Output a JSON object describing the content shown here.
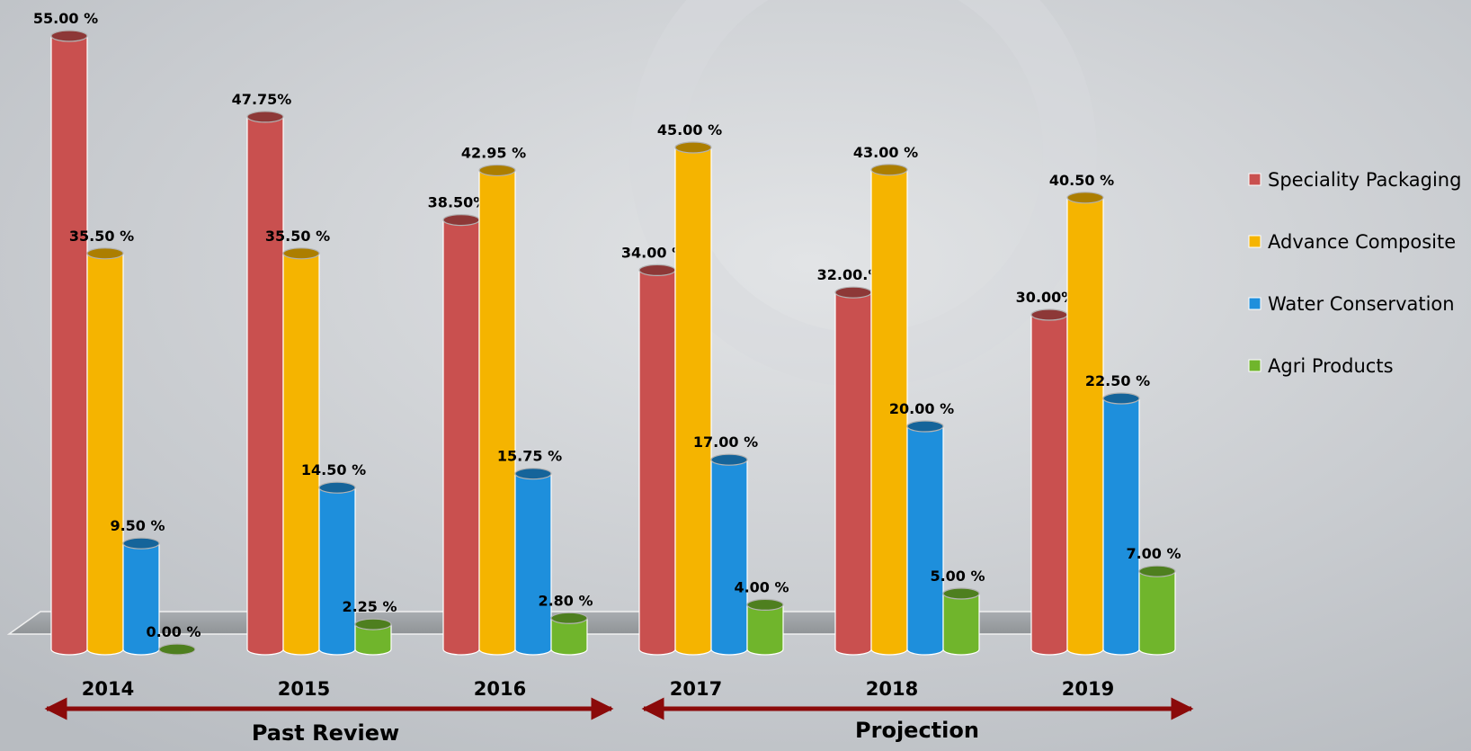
{
  "chart_data": {
    "type": "bar",
    "categories": [
      "2014",
      "2015",
      "2016",
      "2017",
      "2018",
      "2019"
    ],
    "series": [
      {
        "name": "Speciality Packaging",
        "color": "#c9504f",
        "values": [
          55,
          47.75,
          38.5,
          34,
          32,
          30
        ],
        "value_labels": [
          "55.00 %",
          "47.75%",
          "38.50%",
          "34.00 %",
          "32.00.%",
          "30.00%"
        ]
      },
      {
        "name": "Advance Composite",
        "color": "#f5b400",
        "values": [
          35.5,
          35.5,
          42.95,
          45,
          43,
          40.5
        ],
        "value_labels": [
          "35.50 %",
          "35.50 %",
          "42.95 %",
          "45.00 %",
          "43.00 %",
          "40.50 %"
        ]
      },
      {
        "name": "Water Conservation",
        "color": "#1e8fdc",
        "values": [
          9.5,
          14.5,
          15.75,
          17,
          20,
          22.5
        ],
        "value_labels": [
          "9.50 %",
          "14.50 %",
          "15.75 %",
          "17.00 %",
          "20.00 %",
          "22.50 %"
        ]
      },
      {
        "name": "Agri Products",
        "color": "#70b52c",
        "values": [
          0,
          2.25,
          2.8,
          4,
          5,
          7
        ],
        "value_labels": [
          "0.00 %",
          "2.25 %",
          "2.80 %",
          "4.00 %",
          "5.00 %",
          "7.00 %"
        ]
      }
    ],
    "annotations": [
      "Past Review",
      "Projection"
    ]
  }
}
